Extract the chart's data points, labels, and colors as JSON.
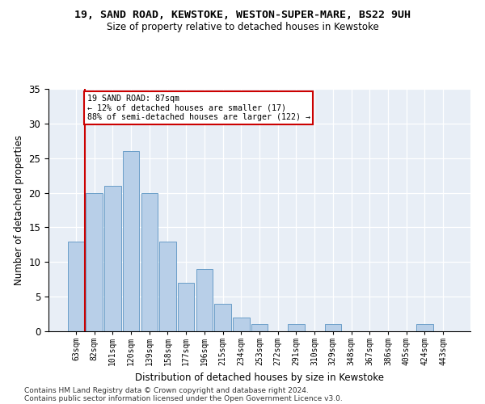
{
  "title1": "19, SAND ROAD, KEWSTOKE, WESTON-SUPER-MARE, BS22 9UH",
  "title2": "Size of property relative to detached houses in Kewstoke",
  "xlabel": "Distribution of detached houses by size in Kewstoke",
  "ylabel": "Number of detached properties",
  "categories": [
    "63sqm",
    "82sqm",
    "101sqm",
    "120sqm",
    "139sqm",
    "158sqm",
    "177sqm",
    "196sqm",
    "215sqm",
    "234sqm",
    "253sqm",
    "272sqm",
    "291sqm",
    "310sqm",
    "329sqm",
    "348sqm",
    "367sqm",
    "386sqm",
    "405sqm",
    "424sqm",
    "443sqm"
  ],
  "values": [
    13,
    20,
    21,
    26,
    20,
    13,
    7,
    9,
    4,
    2,
    1,
    0,
    1,
    0,
    1,
    0,
    0,
    0,
    0,
    1,
    0
  ],
  "bar_color": "#b8cfe8",
  "bar_edge_color": "#6a9ec8",
  "background_color": "#e8eef6",
  "annotation_line1": "19 SAND ROAD: 87sqm",
  "annotation_line2": "← 12% of detached houses are smaller (17)",
  "annotation_line3": "88% of semi-detached houses are larger (122) →",
  "annotation_box_color": "#ffffff",
  "annotation_box_edge_color": "#cc0000",
  "red_line_index": 1,
  "ylim": [
    0,
    35
  ],
  "yticks": [
    0,
    5,
    10,
    15,
    20,
    25,
    30,
    35
  ],
  "footnote1": "Contains HM Land Registry data © Crown copyright and database right 2024.",
  "footnote2": "Contains public sector information licensed under the Open Government Licence v3.0."
}
